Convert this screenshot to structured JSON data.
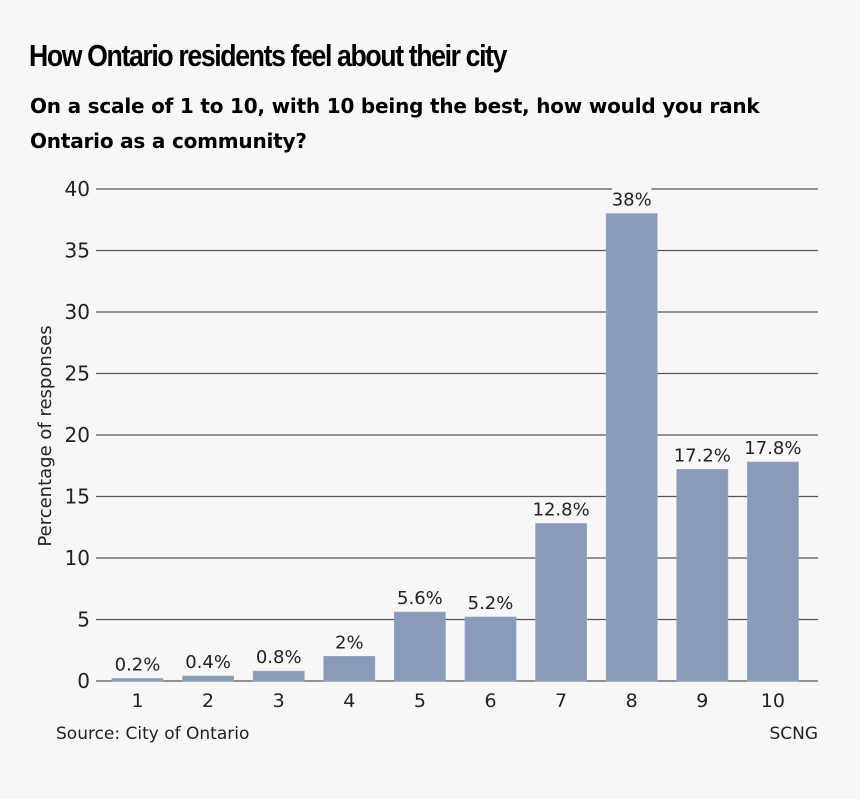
{
  "title": "How Ontario residents feel about their city",
  "subtitle": "On a scale of 1 to 10, with 10 being the best, how would you rank Ontario as a community?",
  "source": "Source: City of Ontario",
  "credit": "SCNG",
  "colors": {
    "bar": "#8a9aba",
    "grid": "#555555",
    "background": "#f7f7f7"
  },
  "chart_data": {
    "type": "bar",
    "title": "How Ontario residents feel about their city",
    "subtitle": "On a scale of 1 to 10, with 10 being the best, how would you rank Ontario as a community?",
    "xlabel": "",
    "ylabel": "Percentage of responses",
    "categories": [
      "1",
      "2",
      "3",
      "4",
      "5",
      "6",
      "7",
      "8",
      "9",
      "10"
    ],
    "values": [
      0.2,
      0.4,
      0.8,
      2,
      5.6,
      5.2,
      12.8,
      38,
      17.2,
      17.8
    ],
    "data_labels": [
      "0.2%",
      "0.4%",
      "0.8%",
      "2%",
      "5.6%",
      "5.2%",
      "12.8%",
      "38%",
      "17.2%",
      "17.8%"
    ],
    "ylim": [
      0,
      40
    ],
    "yticks": [
      0,
      5,
      10,
      15,
      20,
      25,
      30,
      35,
      40
    ],
    "ytick_labels": [
      "0",
      "5",
      "10",
      "15",
      "20",
      "25",
      "30",
      "35",
      "40"
    ],
    "grid": true,
    "legend": "none"
  }
}
